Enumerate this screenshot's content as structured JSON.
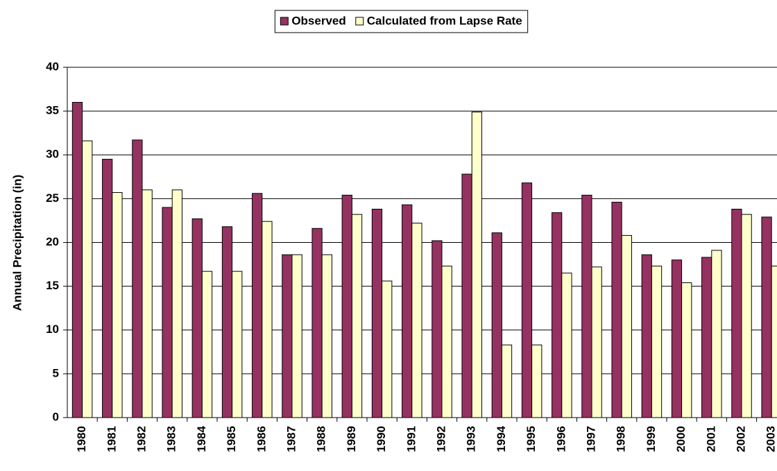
{
  "chart_data": {
    "type": "bar",
    "y_label": "Annual Precipitation (in)",
    "categories": [
      "1980",
      "1981",
      "1982",
      "1983",
      "1984",
      "1985",
      "1986",
      "1987",
      "1988",
      "1989",
      "1990",
      "1991",
      "1992",
      "1993",
      "1994",
      "1995",
      "1996",
      "1997",
      "1998",
      "1999",
      "2000",
      "2001",
      "2002",
      "2003"
    ],
    "series": [
      {
        "name": "Observed",
        "color": "#953261",
        "values": [
          36.0,
          29.5,
          31.7,
          24.0,
          22.7,
          21.8,
          25.6,
          18.6,
          21.6,
          25.4,
          23.8,
          24.3,
          20.2,
          27.8,
          21.1,
          26.8,
          23.4,
          25.4,
          24.6,
          18.6,
          18.0,
          18.3,
          23.8,
          22.9
        ]
      },
      {
        "name": "Calculated from Lapse Rate",
        "color": "#ffffcc",
        "values": [
          31.6,
          25.7,
          26.0,
          26.0,
          16.7,
          16.7,
          22.4,
          18.6,
          18.6,
          23.2,
          15.6,
          22.2,
          17.3,
          34.9,
          8.3,
          8.3,
          16.5,
          17.2,
          20.8,
          17.3,
          15.4,
          19.1,
          23.2,
          17.3
        ]
      }
    ],
    "ylim": [
      0,
      40
    ],
    "yticks": [
      0,
      5,
      10,
      15,
      20,
      25,
      30,
      35,
      40
    ],
    "grid": true,
    "legend": "top"
  }
}
